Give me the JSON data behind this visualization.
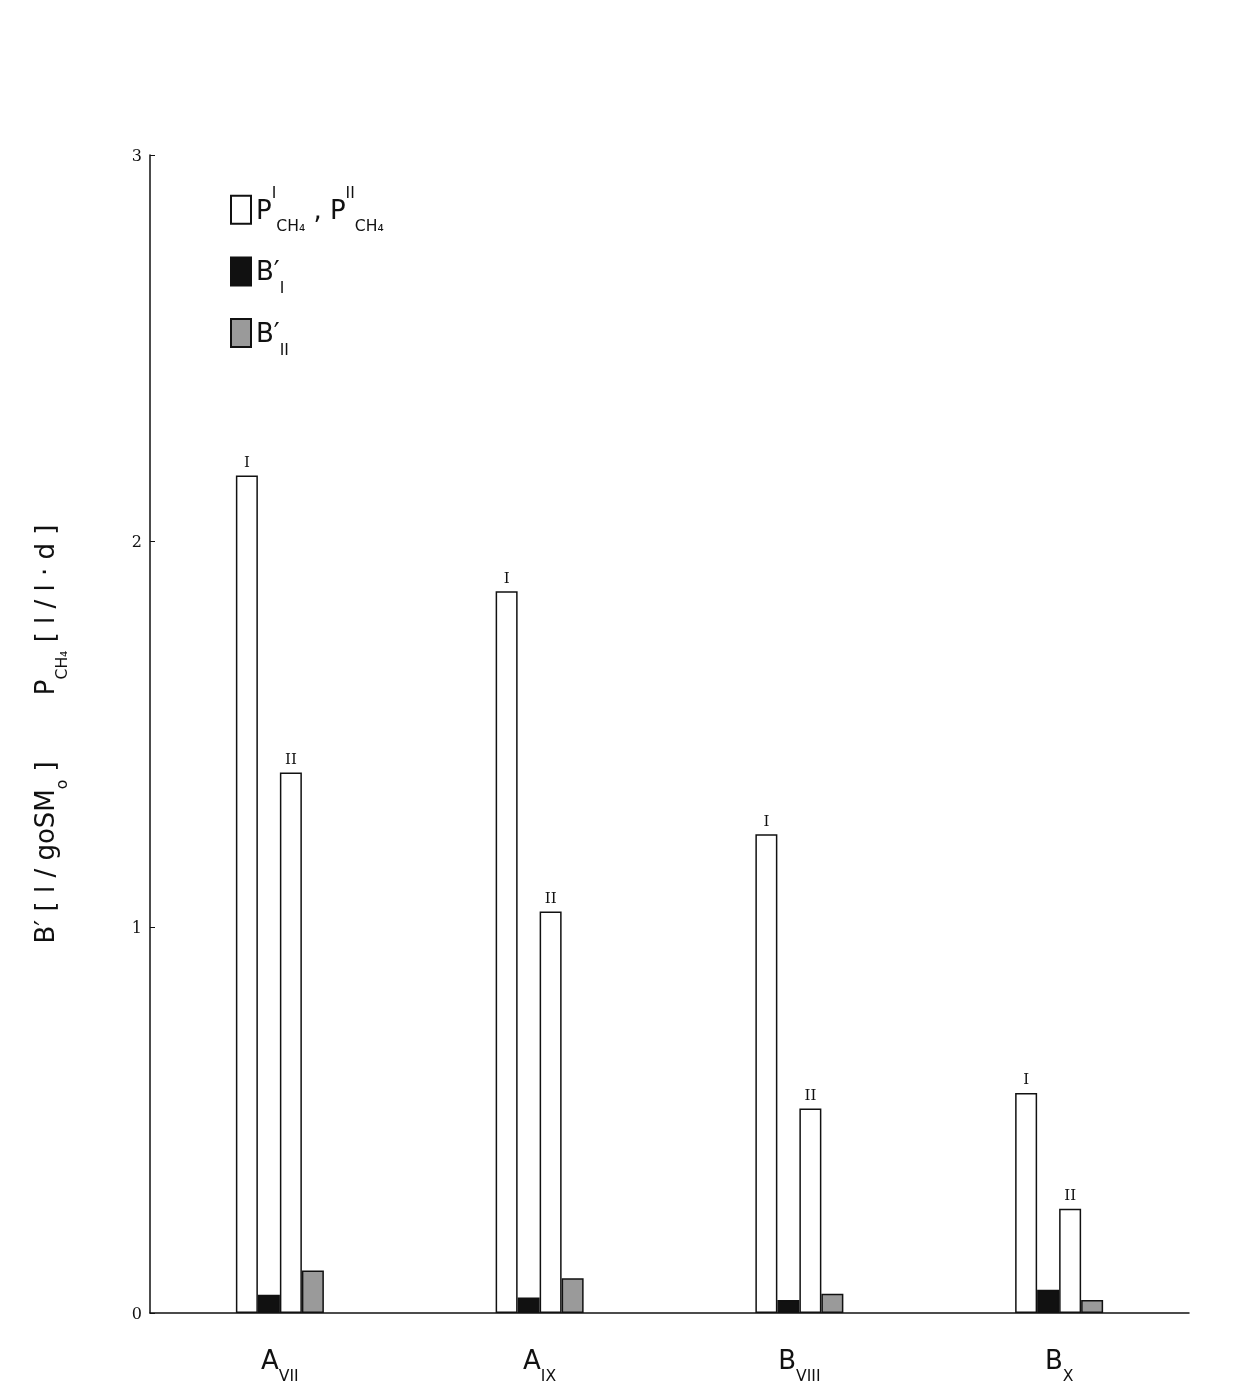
{
  "chart_data": {
    "type": "bar",
    "categories": [
      "A$_{VII}$",
      "A$_{IX}$",
      "B$_{VIII}$",
      "B$_{X}$"
    ],
    "ylabel": "B′ [ l / goSM$_{o}$ ]        P$_{CH₄}$ [ l / l · d ]",
    "series": [
      {
        "name": "P$^{I}$$_{CH₄}$ , P$^{II}$$_{CH₄}$",
        "color": "#ffffff",
        "values": [
          2.17,
          1.87,
          1.24,
          0.57
        ],
        "value_labels": [
          "I",
          "I",
          "I",
          "I"
        ]
      },
      {
        "name": "B′$_{I}$",
        "color": "#111111",
        "values": [
          0.047,
          0.04,
          0.034,
          0.06
        ]
      },
      {
        "color": "#ffffff",
        "values": [
          1.4,
          1.04,
          0.53,
          0.27
        ],
        "value_labels": [
          "II",
          "II",
          "II",
          "II"
        ]
      },
      {
        "name": "B′$_{II}$",
        "color": "#9a9a9a",
        "values": [
          0.11,
          0.09,
          0.05,
          0.034
        ]
      }
    ],
    "ylim": [
      0,
      3
    ],
    "yticks": [
      0,
      1,
      2,
      3
    ],
    "grid": false,
    "legend": "top left"
  }
}
